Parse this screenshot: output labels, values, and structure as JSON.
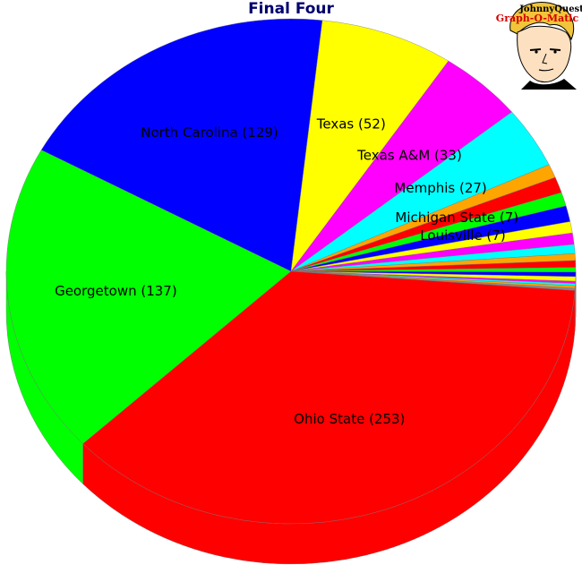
{
  "chart_data": {
    "type": "pie",
    "title": "Final Four",
    "labels_on_chart": true,
    "slices": [
      {
        "label": "Georgetown (137)",
        "value": 137,
        "color": "#00ff00",
        "show_label": true
      },
      {
        "label": "North Carolina (129)",
        "value": 129,
        "color": "#0000ff",
        "show_label": true
      },
      {
        "label": "Texas (52)",
        "value": 52,
        "color": "#ffff00",
        "show_label": true
      },
      {
        "label": "Texas A&M (33)",
        "value": 33,
        "color": "#ff00ff",
        "show_label": true
      },
      {
        "label": "Memphis (27)",
        "value": 27,
        "color": "#00ffff",
        "show_label": true
      },
      {
        "label": "",
        "value": 6,
        "color": "#ffa500",
        "show_label": false
      },
      {
        "label": "Michigan State (7)",
        "value": 7,
        "color": "#ff0000",
        "show_label": true
      },
      {
        "label": "",
        "value": 6,
        "color": "#00ff00",
        "show_label": false
      },
      {
        "label": "Louisville (7)",
        "value": 7,
        "color": "#0000ff",
        "show_label": true
      },
      {
        "label": "",
        "value": 5,
        "color": "#ffff00",
        "show_label": false
      },
      {
        "label": "",
        "value": 5,
        "color": "#ff00ff",
        "show_label": false
      },
      {
        "label": "",
        "value": 4,
        "color": "#00ffff",
        "show_label": false
      },
      {
        "label": "",
        "value": 3,
        "color": "#ffa500",
        "show_label": false
      },
      {
        "label": "",
        "value": 3,
        "color": "#ff0000",
        "show_label": false
      },
      {
        "label": "",
        "value": 2,
        "color": "#00ff00",
        "show_label": false
      },
      {
        "label": "",
        "value": 2,
        "color": "#0000ff",
        "show_label": false
      },
      {
        "label": "",
        "value": 2,
        "color": "#ffff00",
        "show_label": false
      },
      {
        "label": "",
        "value": 1,
        "color": "#ff00ff",
        "show_label": false
      },
      {
        "label": "",
        "value": 1,
        "color": "#00ffff",
        "show_label": false
      },
      {
        "label": "",
        "value": 1,
        "color": "#ffa500",
        "show_label": false
      },
      {
        "label": "",
        "value": 1,
        "color": "#888888",
        "show_label": false
      },
      {
        "label": "Ohio State (253)",
        "value": 253,
        "color": "#ff0000",
        "show_label": true
      }
    ]
  },
  "logo": {
    "line1": "JohnnyQuest",
    "line2": "Graph-O-Matic"
  }
}
